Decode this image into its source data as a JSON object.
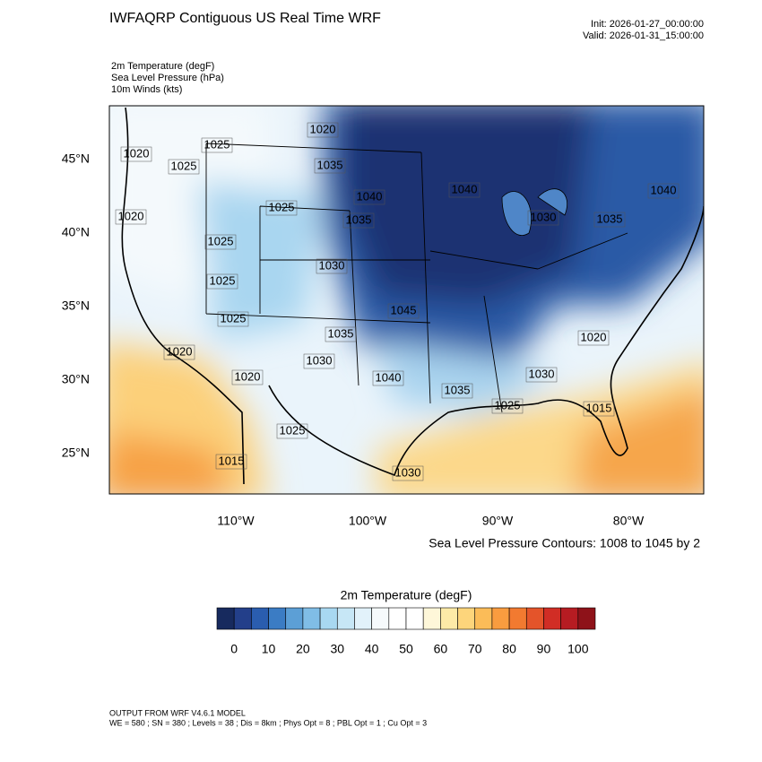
{
  "header": {
    "title": "IWFAQRP Contiguous US Real Time WRF",
    "init": "Init: 2026-01-27_00:00:00",
    "valid": "Valid: 2026-01-31_15:00:00"
  },
  "fields": [
    "2m Temperature   (degF)",
    "Sea Level Pressure   (hPa)",
    "10m Winds   (kts)"
  ],
  "map": {
    "lat_labels": [
      "45°N",
      "40°N",
      "35°N",
      "30°N",
      "25°N"
    ],
    "lon_labels": [
      "110°W",
      "100°W",
      "90°W",
      "80°W"
    ],
    "contour_labels": [
      "1020",
      "1025",
      "1025",
      "1020",
      "1035",
      "1040",
      "1040",
      "1040",
      "1035",
      "1025",
      "1020",
      "1025",
      "1030",
      "1030",
      "1035",
      "1025",
      "1025",
      "1045",
      "1035",
      "1020",
      "1030",
      "1020",
      "1040",
      "1035",
      "1030",
      "1020",
      "1025",
      "1015",
      "1025",
      "1015",
      "1030"
    ],
    "contour_note": "Sea Level Pressure Contours: 1008 to 1045 by 2"
  },
  "colorbar": {
    "title": "2m Temperature  (degF)",
    "ticks": [
      0,
      10,
      20,
      30,
      40,
      50,
      60,
      70,
      80,
      90,
      100
    ],
    "colors": [
      "#172a5e",
      "#233f8a",
      "#2a5daf",
      "#3b7cc4",
      "#5c9fd6",
      "#80bde6",
      "#a8d8f1",
      "#c7e7f6",
      "#e2f2fa",
      "#f6fafc",
      "#ffffff",
      "#ffffff",
      "#fef7d9",
      "#fdeaa7",
      "#fdd57b",
      "#fbbc58",
      "#f99c3f",
      "#f27a30",
      "#e4542a",
      "#d12d25",
      "#b61c22",
      "#8e1219"
    ]
  },
  "footer": {
    "line1": "OUTPUT FROM WRF V4.6.1 MODEL",
    "line2": "WE = 580 ; SN = 380 ; Levels = 38 ; Dis = 8km ; Phys Opt = 8 ; PBL Opt = 1 ; Cu Opt = 3"
  }
}
